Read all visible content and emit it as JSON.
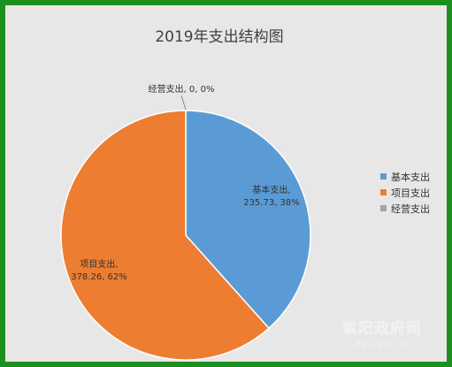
{
  "chart_data": {
    "type": "pie",
    "title": "2019年支出结构图",
    "categories": [
      "基本支出",
      "项目支出",
      "经营支出"
    ],
    "values": [
      235.73,
      378.26,
      0
    ],
    "percents": [
      "38%",
      "62%",
      "0%"
    ],
    "data_labels": [
      [
        "基本支出,",
        "235.73, 38%"
      ],
      [
        "项目支出,",
        "378.26, 62%"
      ],
      [
        "经营支出, 0, 0%"
      ]
    ],
    "legend_position": "right",
    "colors": [
      "#5b9bd5",
      "#ed7d31",
      "#a5a5a5"
    ]
  },
  "watermark": {
    "name": "紫阳政府网",
    "url": "zyx.gov.cn"
  }
}
